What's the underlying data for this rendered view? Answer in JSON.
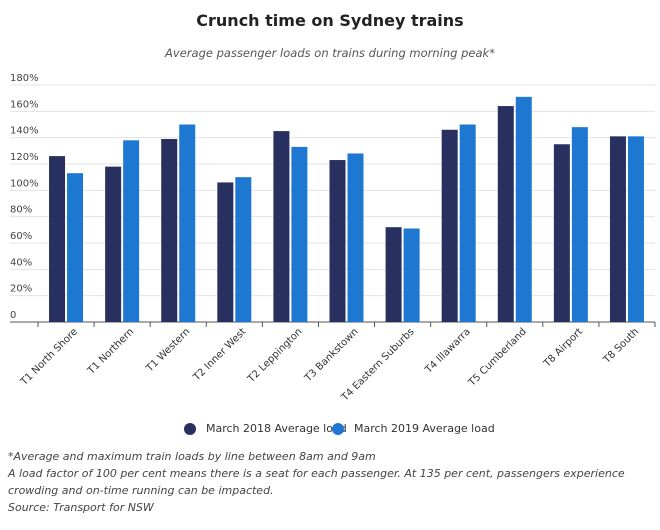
{
  "header": {
    "title": "Crunch time on Sydney trains",
    "subtitle": "Average passenger loads on trains during morning peak*"
  },
  "chart_data": {
    "type": "bar",
    "title": "Crunch time on Sydney trains",
    "subtitle": "Average passenger loads on trains during morning peak*",
    "categories": [
      "T1 North Shore",
      "T1 Northern",
      "T1 Western",
      "T2 Inner West",
      "T2 Leppington",
      "T3 Bankstown",
      "T4 Eastern Suburbs",
      "T4 Illawarra",
      "T5 Cumberland",
      "T8 Airport",
      "T8 South"
    ],
    "series": [
      {
        "name": "March 2018 Average load",
        "color": "#28305f",
        "values": [
          126,
          118,
          139,
          106,
          145,
          123,
          72,
          146,
          164,
          135,
          141
        ]
      },
      {
        "name": "March 2019 Average load",
        "color": "#1e78d2",
        "values": [
          113,
          138,
          150,
          110,
          133,
          128,
          71,
          150,
          171,
          148,
          141
        ]
      }
    ],
    "y_ticks": [
      0,
      20,
      40,
      60,
      80,
      100,
      120,
      140,
      160,
      180
    ],
    "y_tick_labels": [
      "0",
      "20%",
      "40%",
      "60%",
      "80%",
      "100%",
      "120%",
      "140%",
      "160%",
      "180%"
    ],
    "ylim": [
      0,
      180
    ],
    "xlabel": "",
    "ylabel": "",
    "grid": true,
    "legend_position": "bottom"
  },
  "notes": {
    "line1": "*Average and maximum train loads by line between 8am and 9am",
    "line2": "A load factor of 100 per cent means there is a seat for each passenger. At 135 per cent, passengers experience crowding and on-time running can be impacted.",
    "source": "Source: Transport for NSW"
  }
}
